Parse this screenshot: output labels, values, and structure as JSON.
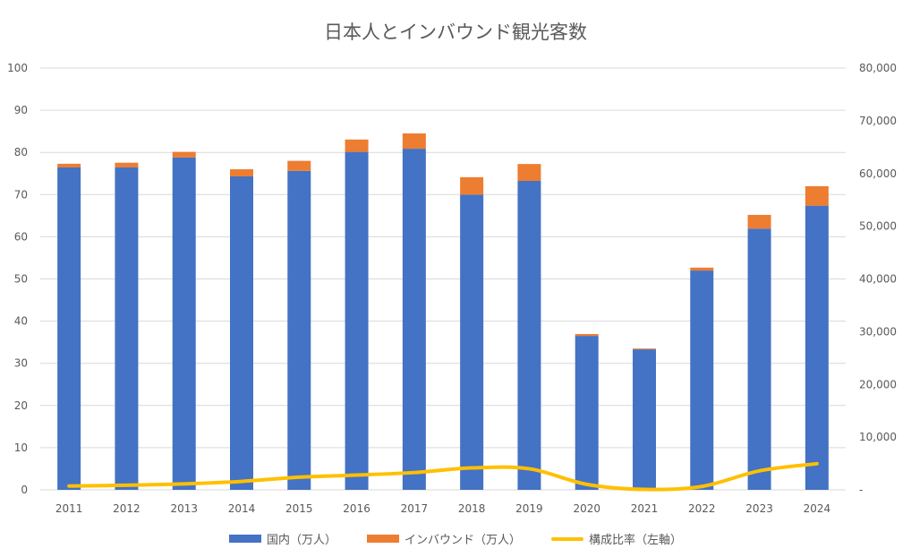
{
  "chart_data": {
    "type": "bar",
    "title": "日本人とインバウンド観光客数",
    "categories": [
      "2011",
      "2012",
      "2013",
      "2014",
      "2015",
      "2016",
      "2017",
      "2018",
      "2019",
      "2020",
      "2021",
      "2022",
      "2023",
      "2024"
    ],
    "series": [
      {
        "name": "国内（万人）",
        "type": "stacked-bar",
        "axis": "right",
        "color": "#4472C4",
        "values": [
          61150,
          61150,
          63050,
          59450,
          60500,
          64100,
          64700,
          56000,
          58600,
          29200,
          26650,
          41600,
          49550,
          53900
        ]
      },
      {
        "name": "インバウンド（万人）",
        "type": "stacked-bar",
        "axis": "right",
        "color": "#ED7D31",
        "values": [
          700,
          900,
          1050,
          1350,
          1900,
          2350,
          2900,
          3300,
          3200,
          350,
          150,
          550,
          2600,
          3700
        ]
      },
      {
        "name": "構成比率（左軸）",
        "type": "line",
        "axis": "left",
        "color": "#FFC000",
        "values": [
          0.9,
          1.1,
          1.4,
          2.0,
          3.0,
          3.5,
          4.1,
          5.2,
          5.0,
          1.3,
          0.1,
          0.8,
          4.5,
          6.2
        ]
      }
    ],
    "left_axis": {
      "ylim": [
        0,
        100
      ],
      "ticks": [
        "0",
        "10",
        "20",
        "30",
        "40",
        "50",
        "60",
        "70",
        "80",
        "90",
        "100"
      ]
    },
    "right_axis": {
      "ylim": [
        0,
        80000
      ],
      "ticks": [
        "-",
        "10,000",
        "20,000",
        "30,000",
        "40,000",
        "50,000",
        "60,000",
        "70,000",
        "80,000"
      ]
    },
    "grid": true,
    "legend_position": "bottom"
  }
}
